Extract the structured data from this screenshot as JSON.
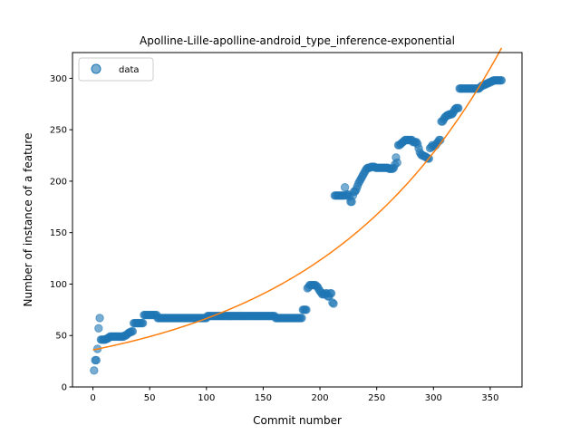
{
  "chart_data": {
    "type": "scatter",
    "title": "Apolline-Lille-apolline-android_type_inference-exponential",
    "xlabel": "Commit number",
    "ylabel": "Number of instance of a feature",
    "xlim": [
      -18,
      378
    ],
    "ylim": [
      0,
      325
    ],
    "xticks": [
      0,
      50,
      100,
      150,
      200,
      250,
      300,
      350
    ],
    "yticks": [
      0,
      50,
      100,
      150,
      200,
      250,
      300
    ],
    "grid": false,
    "legend_position": "top-left",
    "colors": {
      "data": "#1f77b4",
      "fit": "#ff7f0e"
    },
    "series": [
      {
        "name": "data",
        "kind": "scatter",
        "segments": [
          {
            "x_start": 1,
            "x_end": 1,
            "values": [
              16
            ]
          },
          {
            "x_start": 2,
            "x_end": 3,
            "values": [
              26,
              26
            ]
          },
          {
            "x_start": 4,
            "x_end": 4,
            "values": [
              37
            ]
          },
          {
            "x_start": 5,
            "x_end": 5,
            "values": [
              57
            ]
          },
          {
            "x_start": 6,
            "x_end": 6,
            "values": [
              67
            ]
          },
          {
            "x_start": 7,
            "x_end": 14,
            "values": [
              46,
              46,
              46,
              46,
              46,
              47,
              47,
              48
            ]
          },
          {
            "x_start": 15,
            "x_end": 30,
            "values": [
              49,
              49,
              49,
              49,
              49,
              49,
              49,
              49,
              49,
              49,
              49,
              49,
              49,
              50,
              50,
              51
            ]
          },
          {
            "x_start": 31,
            "x_end": 35,
            "values": [
              52,
              53,
              53,
              54,
              54
            ]
          },
          {
            "x_start": 36,
            "x_end": 44,
            "values": [
              62,
              62,
              62,
              62,
              62,
              62,
              62,
              62,
              62
            ]
          },
          {
            "x_start": 45,
            "x_end": 56,
            "values": [
              70,
              70,
              70,
              70,
              70,
              70,
              70,
              70,
              70,
              70,
              70,
              70
            ]
          },
          {
            "x_start": 57,
            "x_end": 100,
            "values": [
              67
            ]
          },
          {
            "x_start": 101,
            "x_end": 160,
            "values": [
              69
            ]
          },
          {
            "x_start": 161,
            "x_end": 184,
            "values": [
              67
            ]
          },
          {
            "x_start": 185,
            "x_end": 188,
            "values": [
              75,
              75,
              75,
              75
            ]
          },
          {
            "x_start": 189,
            "x_end": 197,
            "values": [
              96,
              97,
              99,
              99,
              99,
              99,
              99,
              99,
              98
            ]
          },
          {
            "x_start": 198,
            "x_end": 206,
            "values": [
              97,
              95,
              93,
              92,
              90,
              90,
              90,
              91,
              91
            ]
          },
          {
            "x_start": 207,
            "x_end": 212,
            "values": [
              88,
              88,
              91,
              91,
              82,
              81
            ]
          },
          {
            "x_start": 213,
            "x_end": 225,
            "values": [
              186,
              186,
              186,
              186,
              186,
              186,
              186,
              186,
              186,
              194,
              186,
              187,
              187
            ]
          },
          {
            "x_start": 226,
            "x_end": 235,
            "values": [
              185,
              180,
              180,
              186,
              190,
              190,
              192,
              195,
              198,
              200
            ]
          },
          {
            "x_start": 236,
            "x_end": 248,
            "values": [
              202,
              204,
              206,
              208,
              210,
              212,
              213,
              213,
              213,
              214,
              214,
              214,
              214
            ]
          },
          {
            "x_start": 249,
            "x_end": 268,
            "values": [
              213,
              213,
              213,
              213,
              213,
              213,
              213,
              213,
              213,
              213,
              213,
              213,
              212,
              212,
              212,
              212,
              213,
              216,
              223,
              218
            ]
          },
          {
            "x_start": 269,
            "x_end": 290,
            "values": [
              235,
              235,
              236,
              237,
              238,
              239,
              240,
              240,
              240,
              240,
              240,
              240,
              240,
              238,
              238,
              238,
              238,
              236,
              232,
              228,
              226,
              225
            ]
          },
          {
            "x_start": 291,
            "x_end": 306,
            "values": [
              225,
              224,
              224,
              223,
              222,
              222,
              232,
              233,
              235,
              234,
              234,
              235,
              237,
              238,
              240,
              240
            ]
          },
          {
            "x_start": 307,
            "x_end": 322,
            "values": [
              258,
              258,
              260,
              262,
              263,
              264,
              264,
              265,
              265,
              265,
              266,
              268,
              270,
              271,
              271,
              271
            ]
          },
          {
            "x_start": 323,
            "x_end": 340,
            "values": [
              290
            ]
          },
          {
            "x_start": 341,
            "x_end": 348,
            "values": [
              291,
              292,
              293,
              293,
              294,
              294,
              295,
              295
            ]
          },
          {
            "x_start": 349,
            "x_end": 360,
            "values": [
              296,
              296,
              297,
              297,
              298,
              298,
              298,
              298,
              298,
              298,
              298,
              298
            ]
          }
        ]
      },
      {
        "kind": "line",
        "model": "exponential",
        "a": 36.0,
        "b": 0.00615,
        "x_range": [
          0,
          360
        ]
      }
    ]
  }
}
